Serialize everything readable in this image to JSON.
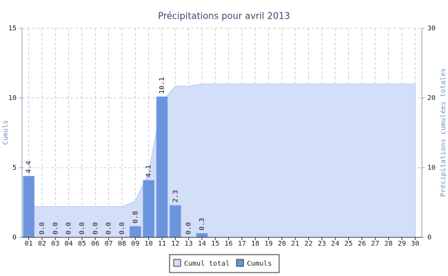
{
  "chart_data": {
    "type": "bar",
    "title": "Précipitations pour avril 2013",
    "y_label": "Cumuls",
    "y2_label": "Précipitations cumulées totales",
    "categories": [
      "01",
      "02",
      "03",
      "04",
      "05",
      "06",
      "07",
      "08",
      "09",
      "10",
      "11",
      "12",
      "13",
      "14",
      "15",
      "16",
      "17",
      "18",
      "19",
      "20",
      "21",
      "22",
      "23",
      "24",
      "25",
      "26",
      "27",
      "28",
      "29",
      "30"
    ],
    "series": [
      {
        "name": "Cumul total",
        "type": "area",
        "axis": "y2",
        "color": "#d3def8",
        "values": [
          4.4,
          4.4,
          4.4,
          4.4,
          4.4,
          4.4,
          4.4,
          4.4,
          5.2,
          9.3,
          19.4,
          21.7,
          21.7,
          22.0,
          22.0,
          22.0,
          22.0,
          22.0,
          22.0,
          22.0,
          22.0,
          22.0,
          22.0,
          22.0,
          22.0,
          22.0,
          22.0,
          22.0,
          22.0,
          22.0
        ]
      },
      {
        "name": "Cumuls",
        "type": "bar",
        "color": "#6b94dc",
        "values": [
          4.4,
          0,
          0,
          0,
          0,
          0,
          0,
          0,
          0.8,
          4.1,
          10.1,
          2.3,
          0,
          0.3,
          null,
          null,
          null,
          null,
          null,
          null,
          null,
          null,
          null,
          null,
          null,
          null,
          null,
          null,
          null,
          null
        ],
        "value_labels": [
          "4.4",
          "0.0",
          "0.0",
          "0.0",
          "0.0",
          "0.0",
          "0.0",
          "0.0",
          "0.8",
          "4.1",
          "10.1",
          "2.3",
          "0.0",
          "0.3",
          null,
          null,
          null,
          null,
          null,
          null,
          null,
          null,
          null,
          null,
          null,
          null,
          null,
          null,
          null,
          null
        ]
      }
    ],
    "ylim": [
      0,
      15
    ],
    "yticks": [
      0,
      5,
      10,
      15
    ],
    "y2lim": [
      0,
      30
    ],
    "y2ticks": [
      0,
      10,
      20,
      30
    ],
    "grid": true,
    "legend": "bottom"
  }
}
